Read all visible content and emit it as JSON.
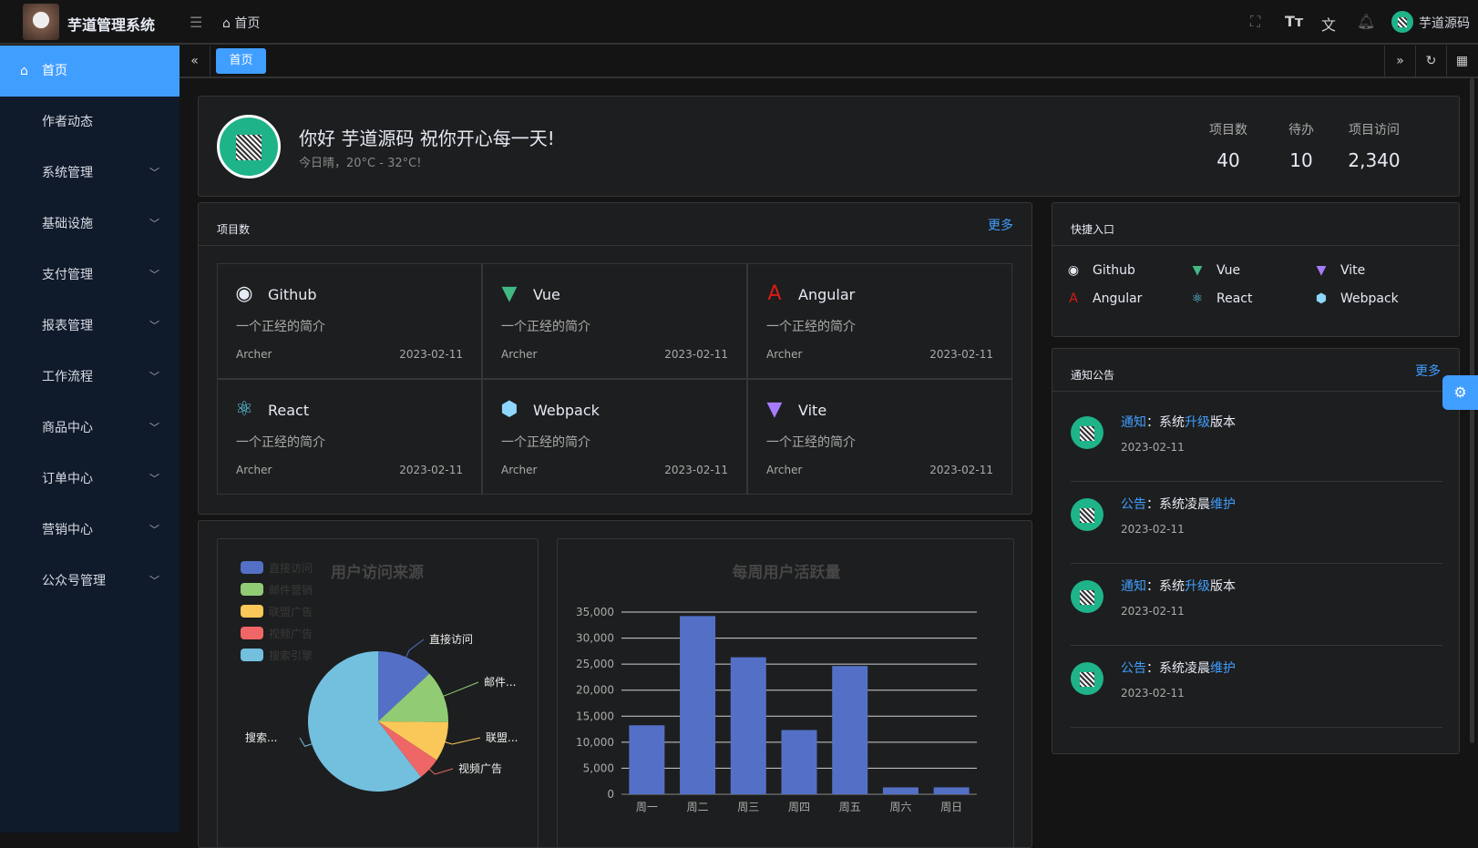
{
  "header": {
    "title": "芋道管理系统",
    "breadcrumb": "首页",
    "user": "芋道源码"
  },
  "sidebar": {
    "items": [
      {
        "label": "首页",
        "active": true
      },
      {
        "label": "作者动态"
      },
      {
        "label": "系统管理",
        "expandable": true
      },
      {
        "label": "基础设施",
        "expandable": true
      },
      {
        "label": "支付管理",
        "expandable": true
      },
      {
        "label": "报表管理",
        "expandable": true
      },
      {
        "label": "工作流程",
        "expandable": true
      },
      {
        "label": "商品中心",
        "expandable": true
      },
      {
        "label": "订单中心",
        "expandable": true
      },
      {
        "label": "营销中心",
        "expandable": true
      },
      {
        "label": "公众号管理",
        "expandable": true
      }
    ]
  },
  "tabs": [
    {
      "label": "首页",
      "active": true
    }
  ],
  "welcome": {
    "greeting": "你好 芋道源码 祝你开心每一天!",
    "weather": "今日晴，20°C - 32°C!",
    "stats": [
      {
        "label": "项目数",
        "value": "40"
      },
      {
        "label": "待办",
        "value": "10"
      },
      {
        "label": "项目访问",
        "value": "2,340"
      }
    ]
  },
  "projects": {
    "title": "项目数",
    "more": "更多",
    "items": [
      {
        "name": "Github",
        "icon": "github-icon",
        "color": "#e5eaf3",
        "desc": "一个正经的简介",
        "author": "Archer",
        "date": "2023-02-11"
      },
      {
        "name": "Vue",
        "icon": "vue-icon",
        "color": "#42b883",
        "desc": "一个正经的简介",
        "author": "Archer",
        "date": "2023-02-11"
      },
      {
        "name": "Angular",
        "icon": "angular-icon",
        "color": "#dd1b16",
        "desc": "一个正经的简介",
        "author": "Archer",
        "date": "2023-02-11"
      },
      {
        "name": "React",
        "icon": "react-icon",
        "color": "#61dafb",
        "desc": "一个正经的简介",
        "author": "Archer",
        "date": "2023-02-11"
      },
      {
        "name": "Webpack",
        "icon": "webpack-icon",
        "color": "#8ed6fb",
        "desc": "一个正经的简介",
        "author": "Archer",
        "date": "2023-02-11"
      },
      {
        "name": "Vite",
        "icon": "vite-icon",
        "color": "#a77bff",
        "desc": "一个正经的简介",
        "author": "Archer",
        "date": "2023-02-11"
      }
    ]
  },
  "shortcuts": {
    "title": "快捷入口",
    "items": [
      {
        "name": "Github",
        "color": "#e5eaf3"
      },
      {
        "name": "Vue",
        "color": "#42b883"
      },
      {
        "name": "Vite",
        "color": "#a77bff"
      },
      {
        "name": "Angular",
        "color": "#dd1b16"
      },
      {
        "name": "React",
        "color": "#61dafb"
      },
      {
        "name": "Webpack",
        "color": "#8ed6fb"
      }
    ]
  },
  "notices": {
    "title": "通知公告",
    "more": "更多",
    "items": [
      {
        "type": "通知",
        "sep": "：",
        "pre": "系统",
        "hl": "升级",
        "post": "版本",
        "date": "2023-02-11"
      },
      {
        "type": "公告",
        "sep": "：",
        "pre": "系统凌晨",
        "hl": "维护",
        "post": "",
        "date": "2023-02-11"
      },
      {
        "type": "通知",
        "sep": "：",
        "pre": "系统",
        "hl": "升级",
        "post": "版本",
        "date": "2023-02-11"
      },
      {
        "type": "公告",
        "sep": "：",
        "pre": "系统凌晨",
        "hl": "维护",
        "post": "",
        "date": "2023-02-11"
      }
    ]
  },
  "chart_data": [
    {
      "type": "pie",
      "title": "用户访问来源",
      "legend": "top-left",
      "categories": [
        "直接访问",
        "邮件营销",
        "联盟广告",
        "视频广告",
        "搜索引擎"
      ],
      "values": [
        335,
        310,
        234,
        135,
        1548
      ],
      "slice_labels": [
        "直接访问",
        "邮件...",
        "联盟...",
        "视频广告",
        "搜索..."
      ],
      "colors": [
        "#5470c6",
        "#91cc75",
        "#fac858",
        "#ee6666",
        "#73c0de"
      ]
    },
    {
      "type": "bar",
      "title": "每周用户活跃量",
      "categories": [
        "周一",
        "周二",
        "周三",
        "周四",
        "周五",
        "周六",
        "周日"
      ],
      "values": [
        13253,
        34235,
        26321,
        12340,
        24643,
        1322,
        1324
      ],
      "ylim": [
        0,
        35000
      ],
      "yticks": [
        "0",
        "5,000",
        "10,000",
        "15,000",
        "20,000",
        "25,000",
        "30,000",
        "35,000"
      ],
      "grid": true,
      "color": "#5470c6"
    }
  ]
}
